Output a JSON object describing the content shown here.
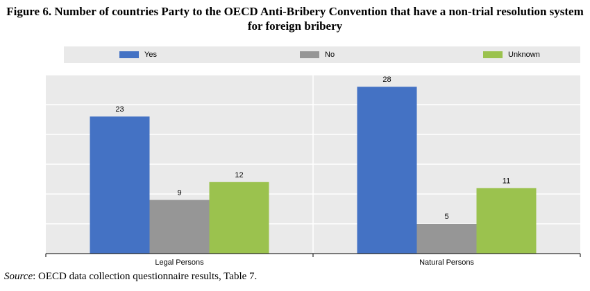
{
  "title": "Figure 6. Number of countries Party to the OECD Anti-Bribery Convention that have a non-trial resolution system for foreign bribery",
  "source": {
    "label": "Source",
    "text": ":  OECD data collection questionnaire results, Table 7."
  },
  "chart_data": {
    "type": "bar",
    "categories": [
      "Legal Persons",
      "Natural Persons"
    ],
    "series": [
      {
        "name": "Yes",
        "values": [
          23,
          28
        ],
        "color": "#4472c4"
      },
      {
        "name": "No",
        "values": [
          9,
          5
        ],
        "color": "#969696"
      },
      {
        "name": "Unknown",
        "values": [
          12,
          11
        ],
        "color": "#9bc24e"
      }
    ],
    "ylim": [
      0,
      30
    ],
    "grid": true,
    "legend_position": "top"
  }
}
